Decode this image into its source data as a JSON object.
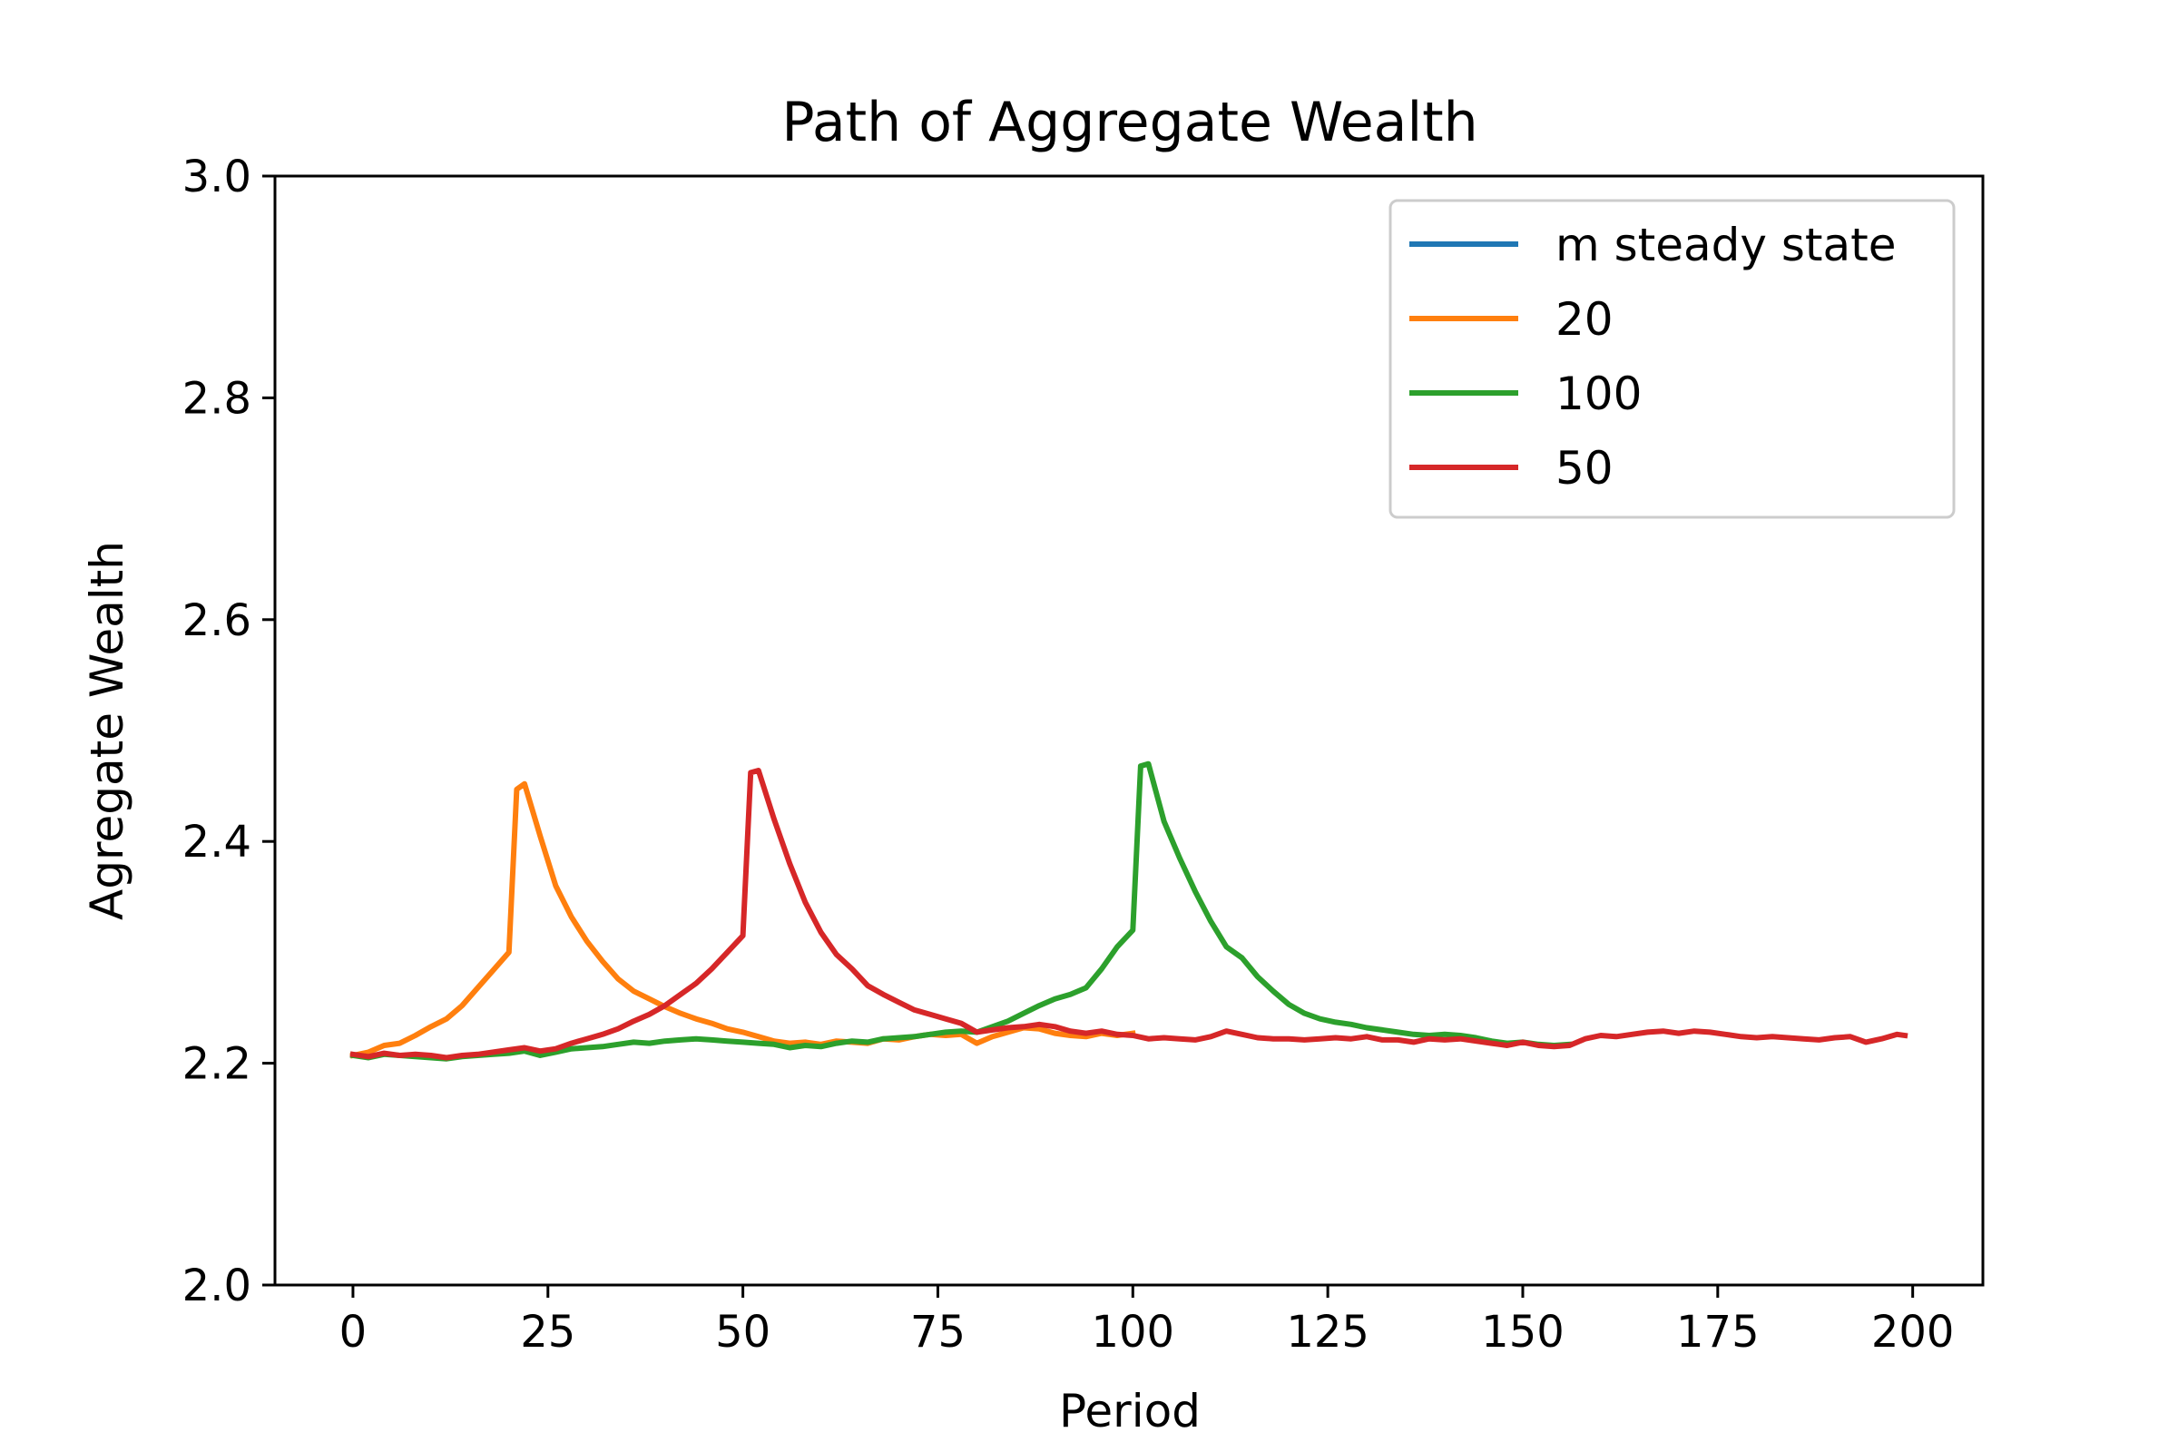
{
  "chart_data": {
    "type": "line",
    "title": "Path of Aggregate Wealth",
    "xlabel": "Period",
    "ylabel": "Agregate Wealth",
    "xlim": [
      -10,
      209
    ],
    "ylim": [
      2.0,
      3.0
    ],
    "xticks": [
      0,
      25,
      50,
      75,
      100,
      125,
      150,
      175,
      200
    ],
    "yticks": [
      2.0,
      2.2,
      2.4,
      2.6,
      2.8,
      3.0
    ],
    "ytick_labels": [
      "2.0",
      "2.2",
      "2.4",
      "2.6",
      "2.8",
      "3.0"
    ],
    "grid": false,
    "legend_position": "upper right",
    "series": [
      {
        "name": "m steady state",
        "color": "#1f77b4",
        "x": [],
        "y": []
      },
      {
        "name": "20",
        "color": "#ff7f0e",
        "x": [
          0,
          2,
          4,
          6,
          8,
          10,
          12,
          14,
          16,
          18,
          20,
          21,
          22,
          24,
          26,
          28,
          30,
          32,
          34,
          36,
          38,
          40,
          42,
          44,
          46,
          48,
          50,
          52,
          54,
          56,
          58,
          60,
          62,
          64,
          66,
          68,
          70,
          72,
          74,
          76,
          78,
          80,
          82,
          84,
          86,
          88,
          90,
          92,
          94,
          96,
          98,
          100
        ],
        "y": [
          2.207,
          2.21,
          2.216,
          2.218,
          2.225,
          2.233,
          2.24,
          2.252,
          2.268,
          2.284,
          2.3,
          2.447,
          2.452,
          2.405,
          2.36,
          2.332,
          2.31,
          2.292,
          2.276,
          2.265,
          2.258,
          2.251,
          2.245,
          2.24,
          2.236,
          2.231,
          2.228,
          2.224,
          2.22,
          2.218,
          2.219,
          2.217,
          2.22,
          2.219,
          2.218,
          2.222,
          2.221,
          2.224,
          2.226,
          2.225,
          2.226,
          2.218,
          2.224,
          2.228,
          2.232,
          2.231,
          2.227,
          2.225,
          2.224,
          2.227,
          2.225,
          2.227
        ]
      },
      {
        "name": "100",
        "color": "#2ca02c",
        "x": [
          0,
          2,
          4,
          6,
          8,
          10,
          12,
          14,
          16,
          18,
          20,
          22,
          24,
          26,
          28,
          30,
          32,
          34,
          36,
          38,
          40,
          42,
          44,
          46,
          48,
          50,
          52,
          54,
          56,
          58,
          60,
          62,
          64,
          66,
          68,
          70,
          72,
          74,
          76,
          78,
          80,
          82,
          84,
          86,
          88,
          90,
          92,
          94,
          96,
          98,
          100,
          101,
          102,
          104,
          106,
          108,
          110,
          112,
          114,
          116,
          118,
          120,
          122,
          124,
          126,
          128,
          130,
          132,
          134,
          136,
          138,
          140,
          142,
          144,
          146,
          148,
          150,
          152,
          154,
          156
        ],
        "y": [
          2.207,
          2.205,
          2.208,
          2.207,
          2.206,
          2.205,
          2.204,
          2.206,
          2.207,
          2.208,
          2.209,
          2.211,
          2.207,
          2.21,
          2.213,
          2.214,
          2.215,
          2.217,
          2.219,
          2.218,
          2.22,
          2.221,
          2.222,
          2.221,
          2.22,
          2.219,
          2.218,
          2.217,
          2.214,
          2.216,
          2.215,
          2.218,
          2.22,
          2.219,
          2.222,
          2.223,
          2.224,
          2.226,
          2.228,
          2.229,
          2.228,
          2.233,
          2.238,
          2.245,
          2.252,
          2.258,
          2.262,
          2.268,
          2.285,
          2.305,
          2.32,
          2.468,
          2.47,
          2.418,
          2.385,
          2.355,
          2.328,
          2.305,
          2.295,
          2.278,
          2.265,
          2.253,
          2.245,
          2.24,
          2.237,
          2.235,
          2.232,
          2.23,
          2.228,
          2.226,
          2.225,
          2.226,
          2.225,
          2.223,
          2.22,
          2.218,
          2.219,
          2.217,
          2.216,
          2.217
        ]
      },
      {
        "name": "50",
        "color": "#d62728",
        "x": [
          0,
          2,
          4,
          6,
          8,
          10,
          12,
          14,
          16,
          18,
          20,
          22,
          24,
          26,
          28,
          30,
          32,
          34,
          36,
          38,
          40,
          42,
          44,
          46,
          48,
          50,
          51,
          52,
          54,
          56,
          58,
          60,
          62,
          64,
          66,
          68,
          70,
          72,
          74,
          76,
          78,
          80,
          82,
          84,
          86,
          88,
          90,
          92,
          94,
          96,
          98,
          100,
          102,
          104,
          106,
          108,
          110,
          112,
          114,
          116,
          118,
          120,
          122,
          124,
          126,
          128,
          130,
          132,
          134,
          136,
          138,
          140,
          142,
          144,
          146,
          148,
          150,
          152,
          154,
          156,
          158,
          160,
          162,
          164,
          166,
          168,
          170,
          172,
          174,
          176,
          178,
          180,
          182,
          184,
          186,
          188,
          190,
          192,
          194,
          196,
          198,
          199
        ],
        "y": [
          2.208,
          2.206,
          2.209,
          2.207,
          2.208,
          2.207,
          2.205,
          2.207,
          2.208,
          2.21,
          2.212,
          2.214,
          2.211,
          2.213,
          2.218,
          2.222,
          2.226,
          2.231,
          2.238,
          2.244,
          2.252,
          2.262,
          2.272,
          2.285,
          2.3,
          2.315,
          2.462,
          2.464,
          2.42,
          2.38,
          2.345,
          2.318,
          2.298,
          2.285,
          2.27,
          2.262,
          2.255,
          2.248,
          2.244,
          2.24,
          2.236,
          2.228,
          2.23,
          2.232,
          2.233,
          2.235,
          2.233,
          2.229,
          2.227,
          2.229,
          2.226,
          2.225,
          2.222,
          2.223,
          2.222,
          2.221,
          2.224,
          2.229,
          2.226,
          2.223,
          2.222,
          2.222,
          2.221,
          2.222,
          2.223,
          2.222,
          2.224,
          2.221,
          2.221,
          2.219,
          2.222,
          2.221,
          2.222,
          2.22,
          2.218,
          2.216,
          2.219,
          2.216,
          2.215,
          2.216,
          2.222,
          2.225,
          2.224,
          2.226,
          2.228,
          2.229,
          2.227,
          2.229,
          2.228,
          2.226,
          2.224,
          2.223,
          2.224,
          2.223,
          2.222,
          2.221,
          2.223,
          2.224,
          2.219,
          2.222,
          2.226,
          2.225
        ]
      }
    ]
  }
}
